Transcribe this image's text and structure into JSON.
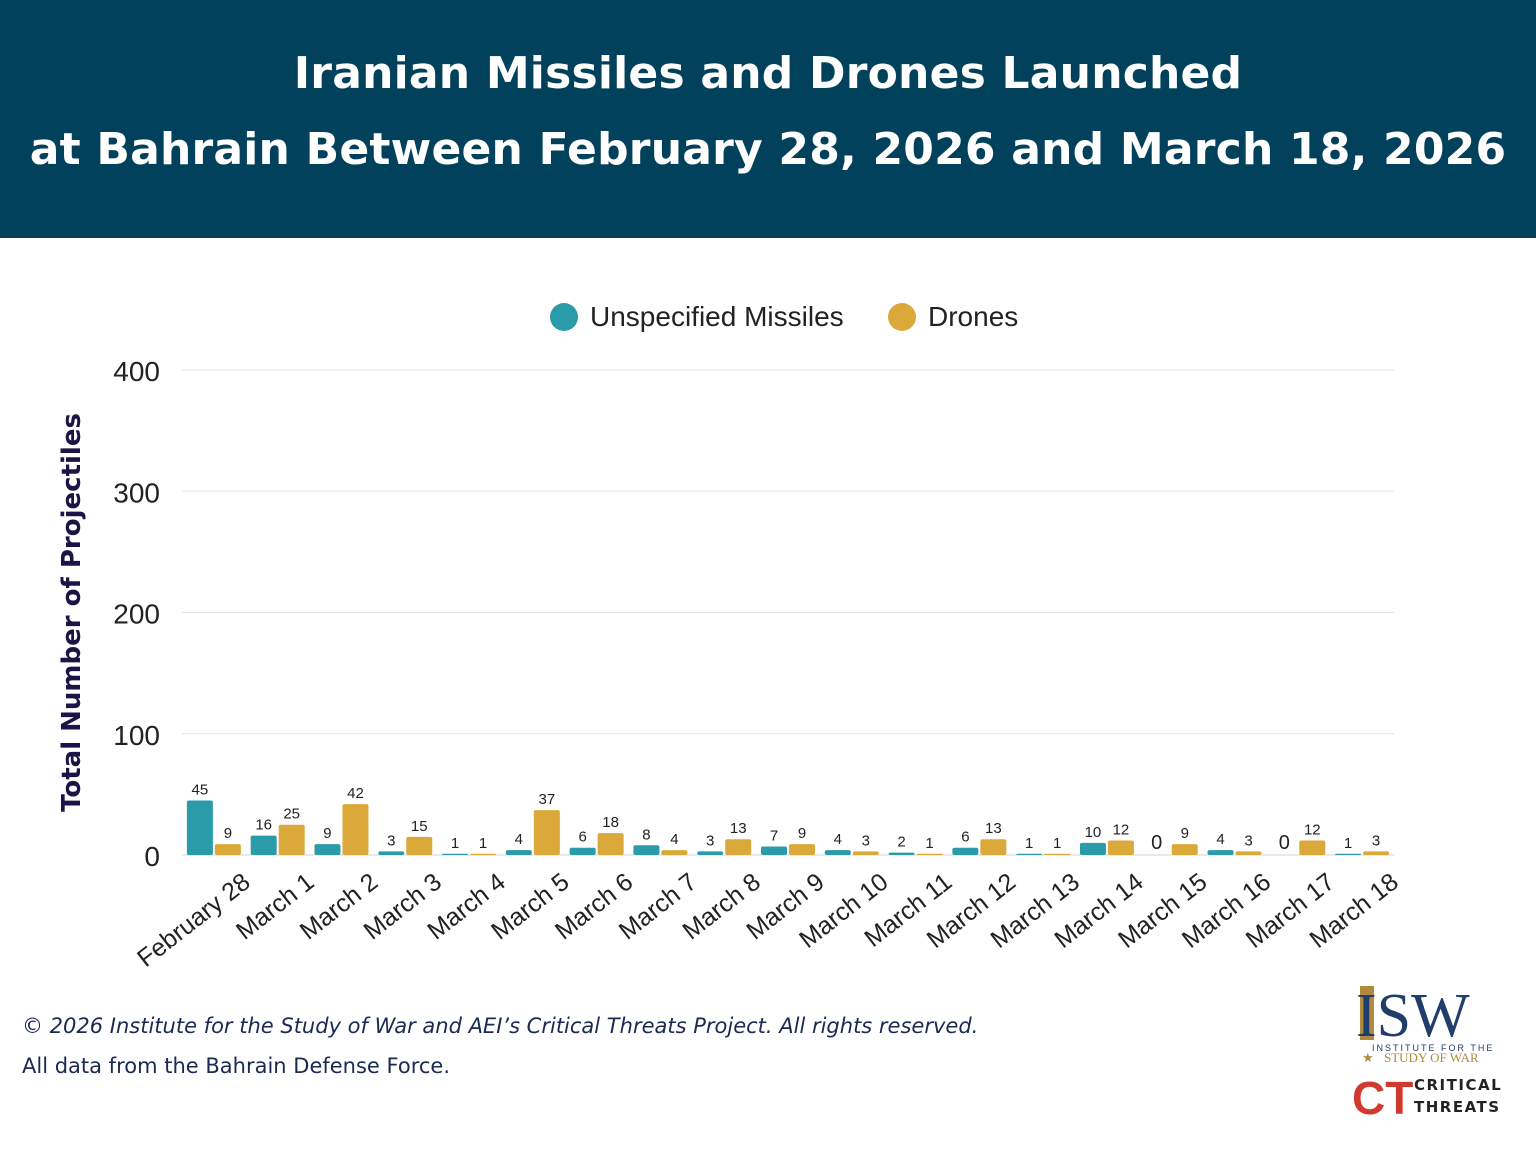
{
  "header": {
    "title_line1": "Iranian Missiles and Drones Launched",
    "title_line2": "at Bahrain Between February 28, 2026 and March 18, 2026"
  },
  "chart_data": {
    "type": "bar",
    "ylabel": "Total Number of Projectiles",
    "ylim": [
      0,
      400
    ],
    "yticks": [
      0,
      100,
      200,
      300,
      400
    ],
    "grid": true,
    "legend_position": "top-center",
    "categories": [
      "February 28",
      "March 1",
      "March 2",
      "March 3",
      "March 4",
      "March 5",
      "March 6",
      "March 7",
      "March 8",
      "March 9",
      "March 10",
      "March 11",
      "March 12",
      "March 13",
      "March 14",
      "March 15",
      "March 16",
      "March 17",
      "March 18"
    ],
    "series": [
      {
        "name": "Unspecified Missiles",
        "color": "#2a9ba8",
        "values": [
          45,
          16,
          9,
          3,
          1,
          4,
          6,
          8,
          3,
          7,
          4,
          2,
          6,
          1,
          10,
          0,
          4,
          0,
          1
        ]
      },
      {
        "name": "Drones",
        "color": "#dba939",
        "values": [
          9,
          25,
          42,
          15,
          1,
          37,
          18,
          4,
          13,
          9,
          3,
          1,
          13,
          1,
          12,
          9,
          3,
          12,
          3
        ]
      }
    ]
  },
  "footer": {
    "copyright": "© 2026 Institute for the Study of War and AEI’s Critical Threats Project. All rights reserved.",
    "source": "All data from the Bahrain Defense Force."
  },
  "logos": {
    "isw_main": "ISW",
    "isw_line1": "INSTITUTE FOR THE",
    "isw_line2": "STUDY OF WAR",
    "ct_mark": "CT",
    "ct_line1": "CRITICAL",
    "ct_line2": "THREATS"
  },
  "colors": {
    "header_bg": "#02415c",
    "missiles": "#2a9ba8",
    "drones": "#dba939",
    "ylabel": "#1b1446"
  }
}
